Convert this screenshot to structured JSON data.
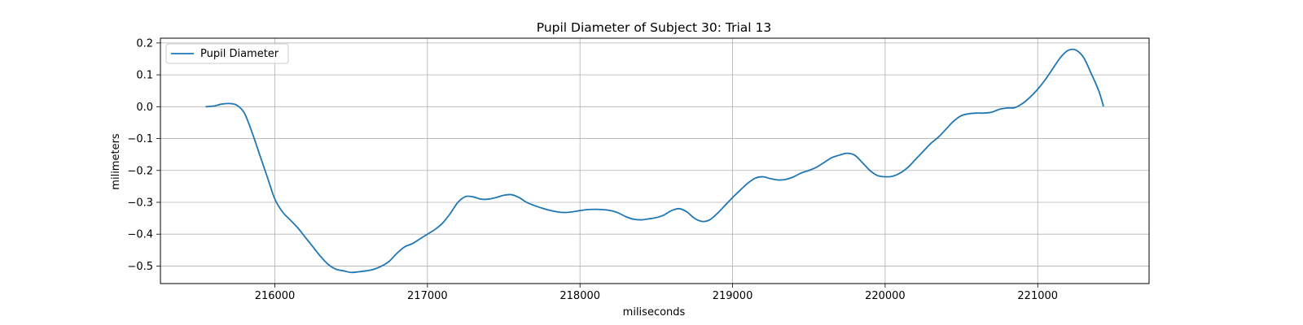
{
  "chart_data": {
    "type": "line",
    "title": "Pupil Diameter of Subject 30: Trial 13",
    "xlabel": "miliseconds",
    "ylabel": "milimeters",
    "xlim": [
      215250,
      221730
    ],
    "ylim": [
      -0.555,
      0.215
    ],
    "xticks": [
      216000,
      217000,
      218000,
      219000,
      220000,
      221000
    ],
    "yticks": [
      -0.5,
      -0.4,
      -0.3,
      -0.2,
      -0.1,
      0.0,
      0.1,
      0.2
    ],
    "xtick_labels": [
      "216000",
      "217000",
      "218000",
      "219000",
      "220000",
      "221000"
    ],
    "ytick_labels": [
      "−0.5",
      "−0.4",
      "−0.3",
      "−0.2",
      "−0.1",
      "0.0",
      "0.1",
      "0.2"
    ],
    "grid": true,
    "legend_position": "upper-left",
    "colors": {
      "series": "#1f77b4",
      "grid": "#b0b0b0",
      "axes": "#000000"
    },
    "series": [
      {
        "name": "Pupil Diameter",
        "x": [
          215550,
          215600,
          215650,
          215700,
          215750,
          215800,
          215850,
          215900,
          215950,
          216000,
          216050,
          216100,
          216150,
          216200,
          216250,
          216300,
          216350,
          216400,
          216450,
          216500,
          216550,
          216600,
          216650,
          216700,
          216750,
          216800,
          216850,
          216900,
          216950,
          217000,
          217050,
          217100,
          217150,
          217200,
          217250,
          217300,
          217350,
          217400,
          217450,
          217500,
          217550,
          217600,
          217650,
          217700,
          217750,
          217800,
          217850,
          217900,
          217950,
          218000,
          218050,
          218100,
          218150,
          218200,
          218250,
          218300,
          218350,
          218400,
          218450,
          218500,
          218550,
          218600,
          218650,
          218700,
          218750,
          218800,
          218850,
          218900,
          218950,
          219000,
          219050,
          219100,
          219150,
          219200,
          219250,
          219300,
          219350,
          219400,
          219450,
          219500,
          219550,
          219600,
          219650,
          219700,
          219750,
          219800,
          219850,
          219900,
          219950,
          220000,
          220050,
          220100,
          220150,
          220200,
          220250,
          220300,
          220350,
          220400,
          220450,
          220500,
          220550,
          220600,
          220650,
          220700,
          220750,
          220800,
          220850,
          220900,
          220950,
          221000,
          221050,
          221100,
          221150,
          221200,
          221250,
          221300,
          221350,
          221400,
          221430
        ],
        "values": [
          0.0,
          0.002,
          0.008,
          0.01,
          0.005,
          -0.02,
          -0.08,
          -0.15,
          -0.22,
          -0.29,
          -0.33,
          -0.355,
          -0.38,
          -0.41,
          -0.44,
          -0.47,
          -0.495,
          -0.51,
          -0.515,
          -0.52,
          -0.518,
          -0.515,
          -0.51,
          -0.5,
          -0.485,
          -0.46,
          -0.44,
          -0.43,
          -0.415,
          -0.4,
          -0.385,
          -0.365,
          -0.335,
          -0.3,
          -0.282,
          -0.283,
          -0.29,
          -0.29,
          -0.285,
          -0.278,
          -0.276,
          -0.285,
          -0.3,
          -0.31,
          -0.318,
          -0.325,
          -0.33,
          -0.332,
          -0.33,
          -0.326,
          -0.323,
          -0.322,
          -0.323,
          -0.326,
          -0.333,
          -0.345,
          -0.353,
          -0.355,
          -0.352,
          -0.348,
          -0.34,
          -0.326,
          -0.32,
          -0.33,
          -0.35,
          -0.36,
          -0.355,
          -0.335,
          -0.31,
          -0.285,
          -0.262,
          -0.24,
          -0.224,
          -0.22,
          -0.226,
          -0.23,
          -0.228,
          -0.22,
          -0.208,
          -0.2,
          -0.19,
          -0.175,
          -0.16,
          -0.152,
          -0.146,
          -0.152,
          -0.175,
          -0.2,
          -0.216,
          -0.22,
          -0.218,
          -0.208,
          -0.19,
          -0.165,
          -0.14,
          -0.115,
          -0.095,
          -0.07,
          -0.045,
          -0.028,
          -0.022,
          -0.02,
          -0.02,
          -0.017,
          -0.008,
          -0.004,
          -0.003,
          0.01,
          0.03,
          0.055,
          0.085,
          0.12,
          0.155,
          0.177,
          0.178,
          0.155,
          0.105,
          0.05,
          0.003
        ]
      }
    ]
  }
}
